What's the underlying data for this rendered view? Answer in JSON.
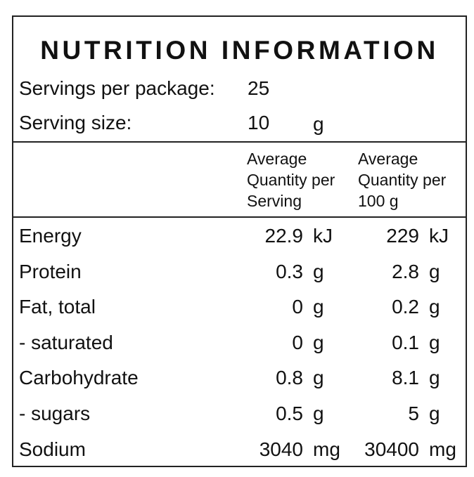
{
  "title": "NUTRITION INFORMATION",
  "servings": [
    {
      "label": "Servings per package:",
      "value": 25
    },
    {
      "label": "Serving size:",
      "value": 10,
      "unit": "g"
    }
  ],
  "columns": [
    "Average Quantity per Serving",
    "Average Quantity per 100 g"
  ],
  "rows": [
    {
      "name": "Energy",
      "per_serving": 22.9,
      "per_serving_unit": "kJ",
      "per_100g": 229,
      "per_100g_unit": "kJ"
    },
    {
      "name": "Protein",
      "per_serving": 0.3,
      "per_serving_unit": "g",
      "per_100g": 2.8,
      "per_100g_unit": "g"
    },
    {
      "name": "Fat, total",
      "per_serving": 0,
      "per_serving_unit": "g",
      "per_100g": 0.2,
      "per_100g_unit": "g"
    },
    {
      "name": "- saturated",
      "per_serving": 0,
      "per_serving_unit": "g",
      "per_100g": 0.1,
      "per_100g_unit": "g"
    },
    {
      "name": "Carbohydrate",
      "per_serving": 0.8,
      "per_serving_unit": "g",
      "per_100g": 8.1,
      "per_100g_unit": "g"
    },
    {
      "name": "- sugars",
      "per_serving": 0.5,
      "per_serving_unit": "g",
      "per_100g": 5,
      "per_100g_unit": "g"
    },
    {
      "name": "Sodium",
      "per_serving": 3040,
      "per_serving_unit": "mg",
      "per_100g": 30400,
      "per_100g_unit": "mg"
    }
  ]
}
